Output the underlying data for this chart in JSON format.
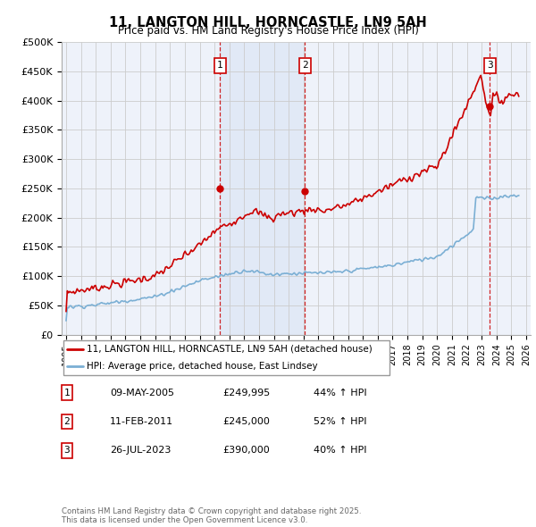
{
  "title": "11, LANGTON HILL, HORNCASTLE, LN9 5AH",
  "subtitle": "Price paid vs. HM Land Registry's House Price Index (HPI)",
  "ylim": [
    0,
    500000
  ],
  "yticks": [
    0,
    50000,
    100000,
    150000,
    200000,
    250000,
    300000,
    350000,
    400000,
    450000,
    500000
  ],
  "ytick_labels": [
    "£0",
    "£50K",
    "£100K",
    "£150K",
    "£200K",
    "£250K",
    "£300K",
    "£350K",
    "£400K",
    "£450K",
    "£500K"
  ],
  "xlim_start": 1994.7,
  "xlim_end": 2026.3,
  "sale_color": "#cc0000",
  "hpi_color": "#7bafd4",
  "vline_color": "#cc0000",
  "grid_color": "#cccccc",
  "plot_bg_color": "#eef2fa",
  "shade_between_color": "#dce6f5",
  "transaction1": {
    "date": 2005.36,
    "price": 249995,
    "label": "1"
  },
  "transaction2": {
    "date": 2011.1,
    "price": 245000,
    "label": "2"
  },
  "transaction3": {
    "date": 2023.55,
    "price": 390000,
    "label": "3"
  },
  "legend_label_red": "11, LANGTON HILL, HORNCASTLE, LN9 5AH (detached house)",
  "legend_label_blue": "HPI: Average price, detached house, East Lindsey",
  "table_rows": [
    {
      "num": "1",
      "date": "09-MAY-2005",
      "price": "£249,995",
      "pct": "44% ↑ HPI"
    },
    {
      "num": "2",
      "date": "11-FEB-2011",
      "price": "£245,000",
      "pct": "52% ↑ HPI"
    },
    {
      "num": "3",
      "date": "26-JUL-2023",
      "price": "£390,000",
      "pct": "40% ↑ HPI"
    }
  ],
  "footer": "Contains HM Land Registry data © Crown copyright and database right 2025.\nThis data is licensed under the Open Government Licence v3.0."
}
